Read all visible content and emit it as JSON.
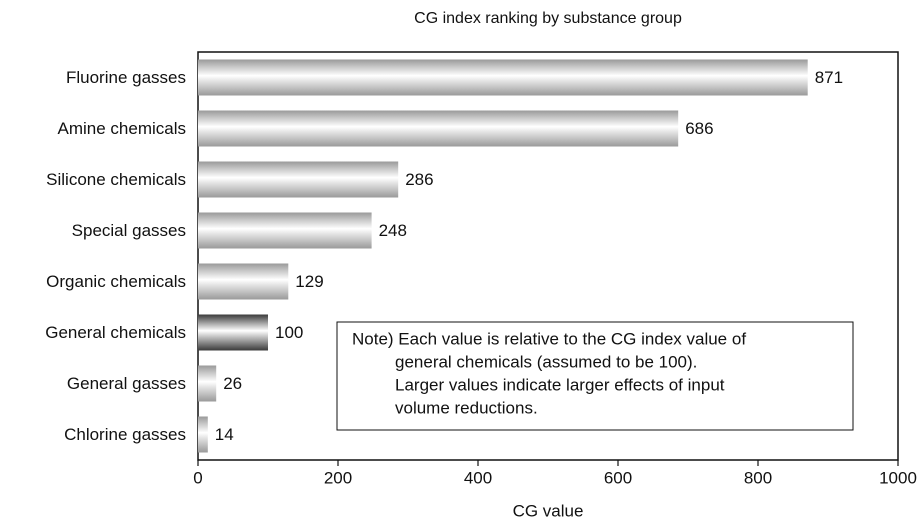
{
  "chart_data": {
    "type": "bar",
    "orientation": "horizontal",
    "title": "CG index ranking by substance group",
    "x_label": "CG value",
    "categories": [
      "Fluorine gasses",
      "Amine chemicals",
      "Silicone chemicals",
      "Special gasses",
      "Organic chemicals",
      "General chemicals",
      "General gasses",
      "Chlorine gasses"
    ],
    "values": [
      871,
      686,
      286,
      248,
      129,
      100,
      26,
      14
    ],
    "colors": [
      "#9a9a9a",
      "#9a9a9a",
      "#9a9a9a",
      "#9a9a9a",
      "#9a9a9a",
      "#3a3a3a",
      "#9a9a9a",
      "#9a9a9a"
    ],
    "xlim": [
      0,
      1000
    ],
    "xticks": [
      0,
      200,
      400,
      600,
      800,
      1000
    ],
    "annotation": [
      "Note) Each value is relative to the CG index value of",
      "general chemicals (assumed to be 100).",
      "Larger values indicate larger effects of input",
      "volume reductions."
    ]
  }
}
